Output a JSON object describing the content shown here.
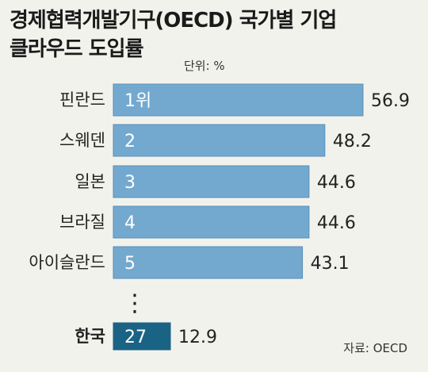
{
  "title_line1": "경제협력개발기구(OECD) 국가별 기업",
  "title_line2": "클라우드 도입률",
  "unit": "단위: %",
  "source": "자료: OECD",
  "ellipsis": "⋮",
  "colors": {
    "bar": "#73a9cf",
    "bar_border": "#5a8fb8",
    "korea_bar": "#1a6385",
    "background": "#f2f2ec"
  },
  "chart_data": {
    "type": "bar",
    "orientation": "horizontal",
    "title": "경제협력개발기구(OECD) 국가별 기업 클라우드 도입률",
    "unit": "단위: %",
    "categories": [
      "핀란드",
      "스웨덴",
      "일본",
      "브라질",
      "아이슬란드",
      "한국"
    ],
    "ranks": [
      "1위",
      "2",
      "3",
      "4",
      "5",
      "27"
    ],
    "values": [
      56.9,
      48.2,
      44.6,
      44.6,
      43.1,
      12.9
    ],
    "value_labels": [
      "56.9",
      "48.2",
      "44.6",
      "44.6",
      "43.1",
      "12.9"
    ],
    "highlight": "한국",
    "xlim": [
      0,
      60
    ],
    "grid": false,
    "source": "자료: OECD"
  }
}
